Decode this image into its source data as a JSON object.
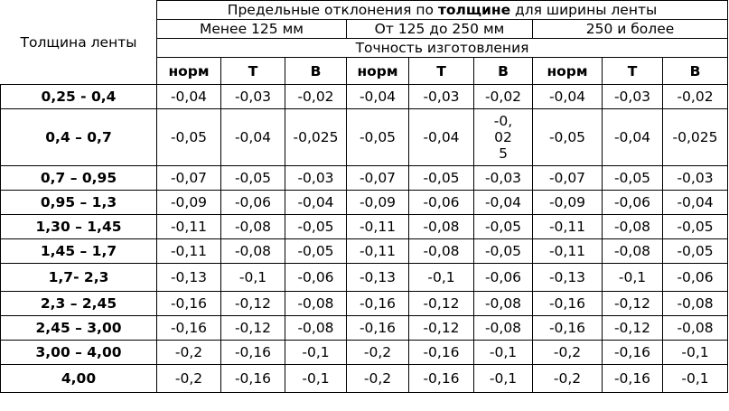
{
  "header": {
    "thickness_label": "Толщина ленты",
    "title_prefix": "Предельные отклонения по ",
    "title_bold": "толщине",
    "title_suffix": " для ширины ленты",
    "width_groups": [
      "Менее 125 мм",
      "От 125 до 250 мм",
      "250 и более"
    ],
    "accuracy_label": "Точность изготовления",
    "classes": [
      "норм",
      "Т",
      "В",
      "норм",
      "Т",
      "В",
      "норм",
      "Т",
      "В"
    ]
  },
  "rows": [
    {
      "thickness": "0,25 - 0,4",
      "values": [
        "-0,04",
        "-0,03",
        "-0,02",
        "-0,04",
        "-0,03",
        "-0,02",
        "-0,04",
        "-0,03",
        "-0,02"
      ]
    },
    {
      "thickness": "0,4 – 0,7",
      "values": [
        "-0,05",
        "-0,04",
        "-0,025",
        "-0,05",
        "-0,04",
        "-0,025",
        "-0,05",
        "-0,04",
        "-0,025"
      ]
    },
    {
      "thickness": "0,7 – 0,95",
      "values": [
        "-0,07",
        "-0,05",
        "-0,03",
        "-0,07",
        "-0,05",
        "-0,03",
        "-0,07",
        "-0,05",
        "-0,03"
      ]
    },
    {
      "thickness": "0,95 – 1,3",
      "values": [
        "-0,09",
        "-0,06",
        "-0,04",
        "-0,09",
        "-0,06",
        "-0,04",
        "-0,09",
        "-0,06",
        "-0,04"
      ]
    },
    {
      "thickness": "1,30 – 1,45",
      "values": [
        "-0,11",
        "-0,08",
        "-0,05",
        "-0,11",
        "-0,08",
        "-0,05",
        "-0,11",
        "-0,08",
        "-0,05"
      ]
    },
    {
      "thickness": "1,45 – 1,7",
      "values": [
        "-0,11",
        "-0,08",
        "-0,05",
        "-0,11",
        "-0,08",
        "-0,05",
        "-0,11",
        "-0,08",
        "-0,05"
      ]
    },
    {
      "thickness": "1,7- 2,3",
      "values": [
        "-0,13",
        "-0,1",
        "-0,06",
        "-0,13",
        "-0,1",
        "-0,06",
        "-0,13",
        "-0,1",
        "-0,06"
      ]
    },
    {
      "thickness": "2,3 – 2,45",
      "values": [
        "-0,16",
        "-0,12",
        "-0,08",
        "-0,16",
        "-0,12",
        "-0,08",
        "-0,16",
        "-0,12",
        "-0,08"
      ]
    },
    {
      "thickness": "2,45 – 3,00",
      "values": [
        "-0,16",
        "-0,12",
        "-0,08",
        "-0,16",
        "-0,12",
        "-0,08",
        "-0,16",
        "-0,12",
        "-0,08"
      ]
    },
    {
      "thickness": "3,00 – 4,00",
      "values": [
        "-0,2",
        "-0,16",
        "-0,1",
        "-0,2",
        "-0,16",
        "-0,1",
        "-0,2",
        "-0,16",
        "-0,1"
      ]
    },
    {
      "thickness": "4,00",
      "values": [
        "-0,2",
        "-0,16",
        "-0,1",
        "-0,2",
        "-0,16",
        "-0,1",
        "-0,2",
        "-0,16",
        "-0,1"
      ]
    }
  ]
}
